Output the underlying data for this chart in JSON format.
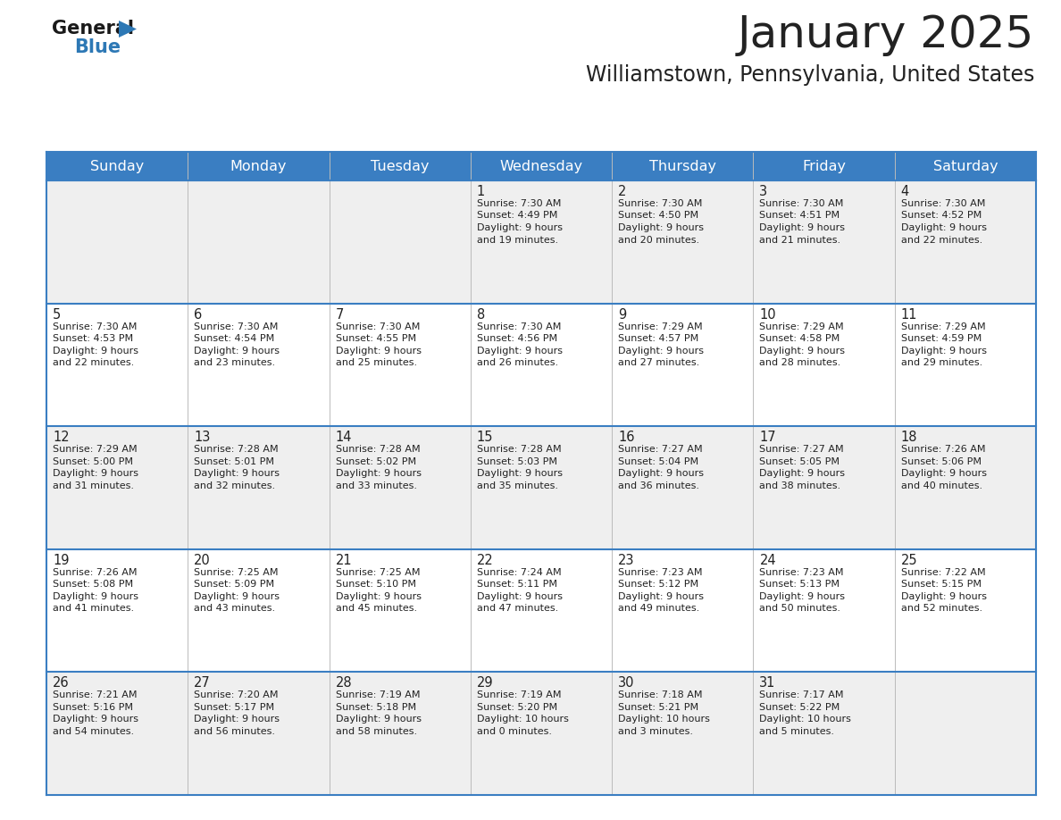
{
  "title": "January 2025",
  "subtitle": "Williamstown, Pennsylvania, United States",
  "header_color": "#3a7ec2",
  "header_text_color": "#ffffff",
  "cell_bg_light": "#efefef",
  "cell_bg_white": "#ffffff",
  "text_color": "#222222",
  "line_color": "#3a7ec2",
  "days_of_week": [
    "Sunday",
    "Monday",
    "Tuesday",
    "Wednesday",
    "Thursday",
    "Friday",
    "Saturday"
  ],
  "calendar": [
    [
      {
        "day": "",
        "sunrise": "",
        "sunset": "",
        "daylight_line1": "",
        "daylight_line2": ""
      },
      {
        "day": "",
        "sunrise": "",
        "sunset": "",
        "daylight_line1": "",
        "daylight_line2": ""
      },
      {
        "day": "",
        "sunrise": "",
        "sunset": "",
        "daylight_line1": "",
        "daylight_line2": ""
      },
      {
        "day": "1",
        "sunrise": "7:30 AM",
        "sunset": "4:49 PM",
        "daylight_line1": "9 hours",
        "daylight_line2": "and 19 minutes."
      },
      {
        "day": "2",
        "sunrise": "7:30 AM",
        "sunset": "4:50 PM",
        "daylight_line1": "9 hours",
        "daylight_line2": "and 20 minutes."
      },
      {
        "day": "3",
        "sunrise": "7:30 AM",
        "sunset": "4:51 PM",
        "daylight_line1": "9 hours",
        "daylight_line2": "and 21 minutes."
      },
      {
        "day": "4",
        "sunrise": "7:30 AM",
        "sunset": "4:52 PM",
        "daylight_line1": "9 hours",
        "daylight_line2": "and 22 minutes."
      }
    ],
    [
      {
        "day": "5",
        "sunrise": "7:30 AM",
        "sunset": "4:53 PM",
        "daylight_line1": "9 hours",
        "daylight_line2": "and 22 minutes."
      },
      {
        "day": "6",
        "sunrise": "7:30 AM",
        "sunset": "4:54 PM",
        "daylight_line1": "9 hours",
        "daylight_line2": "and 23 minutes."
      },
      {
        "day": "7",
        "sunrise": "7:30 AM",
        "sunset": "4:55 PM",
        "daylight_line1": "9 hours",
        "daylight_line2": "and 25 minutes."
      },
      {
        "day": "8",
        "sunrise": "7:30 AM",
        "sunset": "4:56 PM",
        "daylight_line1": "9 hours",
        "daylight_line2": "and 26 minutes."
      },
      {
        "day": "9",
        "sunrise": "7:29 AM",
        "sunset": "4:57 PM",
        "daylight_line1": "9 hours",
        "daylight_line2": "and 27 minutes."
      },
      {
        "day": "10",
        "sunrise": "7:29 AM",
        "sunset": "4:58 PM",
        "daylight_line1": "9 hours",
        "daylight_line2": "and 28 minutes."
      },
      {
        "day": "11",
        "sunrise": "7:29 AM",
        "sunset": "4:59 PM",
        "daylight_line1": "9 hours",
        "daylight_line2": "and 29 minutes."
      }
    ],
    [
      {
        "day": "12",
        "sunrise": "7:29 AM",
        "sunset": "5:00 PM",
        "daylight_line1": "9 hours",
        "daylight_line2": "and 31 minutes."
      },
      {
        "day": "13",
        "sunrise": "7:28 AM",
        "sunset": "5:01 PM",
        "daylight_line1": "9 hours",
        "daylight_line2": "and 32 minutes."
      },
      {
        "day": "14",
        "sunrise": "7:28 AM",
        "sunset": "5:02 PM",
        "daylight_line1": "9 hours",
        "daylight_line2": "and 33 minutes."
      },
      {
        "day": "15",
        "sunrise": "7:28 AM",
        "sunset": "5:03 PM",
        "daylight_line1": "9 hours",
        "daylight_line2": "and 35 minutes."
      },
      {
        "day": "16",
        "sunrise": "7:27 AM",
        "sunset": "5:04 PM",
        "daylight_line1": "9 hours",
        "daylight_line2": "and 36 minutes."
      },
      {
        "day": "17",
        "sunrise": "7:27 AM",
        "sunset": "5:05 PM",
        "daylight_line1": "9 hours",
        "daylight_line2": "and 38 minutes."
      },
      {
        "day": "18",
        "sunrise": "7:26 AM",
        "sunset": "5:06 PM",
        "daylight_line1": "9 hours",
        "daylight_line2": "and 40 minutes."
      }
    ],
    [
      {
        "day": "19",
        "sunrise": "7:26 AM",
        "sunset": "5:08 PM",
        "daylight_line1": "9 hours",
        "daylight_line2": "and 41 minutes."
      },
      {
        "day": "20",
        "sunrise": "7:25 AM",
        "sunset": "5:09 PM",
        "daylight_line1": "9 hours",
        "daylight_line2": "and 43 minutes."
      },
      {
        "day": "21",
        "sunrise": "7:25 AM",
        "sunset": "5:10 PM",
        "daylight_line1": "9 hours",
        "daylight_line2": "and 45 minutes."
      },
      {
        "day": "22",
        "sunrise": "7:24 AM",
        "sunset": "5:11 PM",
        "daylight_line1": "9 hours",
        "daylight_line2": "and 47 minutes."
      },
      {
        "day": "23",
        "sunrise": "7:23 AM",
        "sunset": "5:12 PM",
        "daylight_line1": "9 hours",
        "daylight_line2": "and 49 minutes."
      },
      {
        "day": "24",
        "sunrise": "7:23 AM",
        "sunset": "5:13 PM",
        "daylight_line1": "9 hours",
        "daylight_line2": "and 50 minutes."
      },
      {
        "day": "25",
        "sunrise": "7:22 AM",
        "sunset": "5:15 PM",
        "daylight_line1": "9 hours",
        "daylight_line2": "and 52 minutes."
      }
    ],
    [
      {
        "day": "26",
        "sunrise": "7:21 AM",
        "sunset": "5:16 PM",
        "daylight_line1": "9 hours",
        "daylight_line2": "and 54 minutes."
      },
      {
        "day": "27",
        "sunrise": "7:20 AM",
        "sunset": "5:17 PM",
        "daylight_line1": "9 hours",
        "daylight_line2": "and 56 minutes."
      },
      {
        "day": "28",
        "sunrise": "7:19 AM",
        "sunset": "5:18 PM",
        "daylight_line1": "9 hours",
        "daylight_line2": "and 58 minutes."
      },
      {
        "day": "29",
        "sunrise": "7:19 AM",
        "sunset": "5:20 PM",
        "daylight_line1": "10 hours",
        "daylight_line2": "and 0 minutes."
      },
      {
        "day": "30",
        "sunrise": "7:18 AM",
        "sunset": "5:21 PM",
        "daylight_line1": "10 hours",
        "daylight_line2": "and 3 minutes."
      },
      {
        "day": "31",
        "sunrise": "7:17 AM",
        "sunset": "5:22 PM",
        "daylight_line1": "10 hours",
        "daylight_line2": "and 5 minutes."
      },
      {
        "day": "",
        "sunrise": "",
        "sunset": "",
        "daylight_line1": "",
        "daylight_line2": ""
      }
    ]
  ]
}
